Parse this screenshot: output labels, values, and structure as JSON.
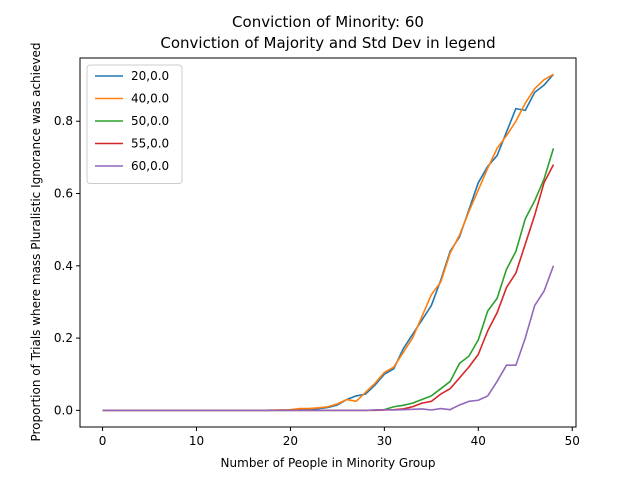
{
  "chart_data": {
    "type": "line",
    "title": "Conviction of Minority: 60",
    "subtitle": "Conviction of Majority and Std Dev in legend",
    "xlabel": "Number of People in Minority Group",
    "ylabel": "Proportion of Trials where mass Pluralistic Ignorance was achieved",
    "xlim": [
      -2.4,
      50.4
    ],
    "ylim": [
      -0.046,
      0.975
    ],
    "xticks": [
      0,
      10,
      20,
      30,
      40,
      50
    ],
    "yticks": [
      0.0,
      0.2,
      0.4,
      0.6,
      0.8
    ],
    "legend_position": "top-left",
    "grid": false,
    "x": [
      0,
      1,
      2,
      3,
      4,
      5,
      6,
      7,
      8,
      9,
      10,
      11,
      12,
      13,
      14,
      15,
      16,
      17,
      18,
      19,
      20,
      21,
      22,
      23,
      24,
      25,
      26,
      27,
      28,
      29,
      30,
      31,
      32,
      33,
      34,
      35,
      36,
      37,
      38,
      39,
      40,
      41,
      42,
      43,
      44,
      45,
      46,
      47,
      48
    ],
    "series": [
      {
        "name": "20,0.0",
        "color": "#1f77b4",
        "values": [
          0,
          0,
          0,
          0,
          0,
          0,
          0,
          0,
          0,
          0,
          0,
          0,
          0,
          0,
          0,
          0,
          0,
          0,
          0,
          0.001,
          0.001,
          0.002,
          0.003,
          0.005,
          0.008,
          0.015,
          0.03,
          0.04,
          0.045,
          0.07,
          0.1,
          0.115,
          0.17,
          0.21,
          0.25,
          0.29,
          0.36,
          0.44,
          0.48,
          0.555,
          0.63,
          0.675,
          0.705,
          0.77,
          0.835,
          0.83,
          0.88,
          0.9,
          0.93
        ]
      },
      {
        "name": "40,0.0",
        "color": "#ff7f0e",
        "values": [
          0,
          0,
          0,
          0,
          0,
          0,
          0,
          0,
          0,
          0,
          0,
          0,
          0,
          0,
          0,
          0,
          0,
          0,
          0.001,
          0.001,
          0.002,
          0.005,
          0.005,
          0.007,
          0.01,
          0.018,
          0.03,
          0.025,
          0.05,
          0.075,
          0.105,
          0.12,
          0.16,
          0.2,
          0.26,
          0.32,
          0.355,
          0.435,
          0.485,
          0.55,
          0.61,
          0.67,
          0.725,
          0.76,
          0.8,
          0.85,
          0.89,
          0.915,
          0.93
        ]
      },
      {
        "name": "50,0.0",
        "color": "#2ca02c",
        "values": [
          0,
          0,
          0,
          0,
          0,
          0,
          0,
          0,
          0,
          0,
          0,
          0,
          0,
          0,
          0,
          0,
          0,
          0,
          0,
          0,
          0,
          0,
          0,
          0,
          0,
          0,
          0,
          0,
          0,
          0.001,
          0.002,
          0.01,
          0.014,
          0.02,
          0.03,
          0.04,
          0.06,
          0.08,
          0.13,
          0.15,
          0.195,
          0.275,
          0.31,
          0.39,
          0.44,
          0.53,
          0.58,
          0.64,
          0.725
        ]
      },
      {
        "name": "55,0.0",
        "color": "#d62728",
        "values": [
          0,
          0,
          0,
          0,
          0,
          0,
          0,
          0,
          0,
          0,
          0,
          0,
          0,
          0,
          0,
          0,
          0,
          0,
          0,
          0,
          0,
          0,
          0,
          0,
          0,
          0,
          0,
          0,
          0,
          0,
          0.001,
          0.002,
          0.004,
          0.01,
          0.02,
          0.025,
          0.045,
          0.06,
          0.09,
          0.12,
          0.155,
          0.22,
          0.27,
          0.34,
          0.38,
          0.46,
          0.54,
          0.63,
          0.68
        ]
      },
      {
        "name": "60,0.0",
        "color": "#9467bd",
        "values": [
          0,
          0,
          0,
          0,
          0,
          0,
          0,
          0,
          0,
          0,
          0,
          0,
          0,
          0,
          0,
          0,
          0,
          0,
          0,
          0,
          0,
          0,
          0,
          0,
          0,
          0,
          0,
          0,
          0,
          0.001,
          0.002,
          0.001,
          0.002,
          0.003,
          0.004,
          0.001,
          0.005,
          0.002,
          0.015,
          0.025,
          0.028,
          0.04,
          0.08,
          0.125,
          0.125,
          0.2,
          0.29,
          0.33,
          0.4
        ]
      }
    ]
  }
}
